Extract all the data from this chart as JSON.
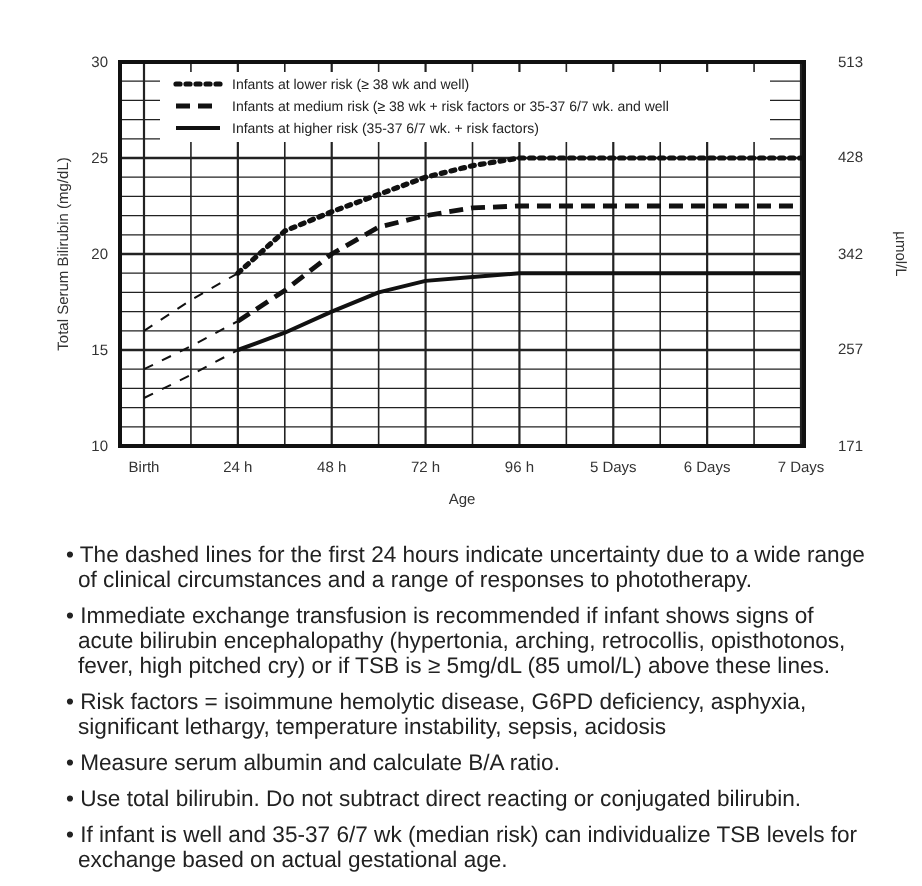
{
  "chart_data": {
    "type": "line",
    "xlabel": "Age",
    "ylabel": "Total Serum Bilirubin (mg/dL)",
    "y2label": "µmol/L",
    "categories": [
      "Birth",
      null,
      "24 h",
      null,
      "48 h",
      null,
      "72 h",
      null,
      "96 h",
      null,
      "5 Days",
      null,
      "6 Days",
      null,
      "7 Days"
    ],
    "ylim": [
      10,
      30
    ],
    "yticks": [
      10,
      {
        "value": 11,
        "label": null
      },
      {
        "value": 12,
        "label": null
      },
      {
        "value": 13,
        "label": null
      },
      {
        "value": 14,
        "label": null
      },
      15,
      {
        "value": 16,
        "label": null
      },
      {
        "value": 17,
        "label": null
      },
      {
        "value": 18,
        "label": null
      },
      {
        "value": 19,
        "label": null
      },
      20,
      {
        "value": 21,
        "label": null
      },
      {
        "value": 22,
        "label": null
      },
      {
        "value": 23,
        "label": null
      },
      {
        "value": 24,
        "label": null
      },
      25,
      {
        "value": 26,
        "label": null
      },
      {
        "value": 27,
        "label": null
      },
      {
        "value": 28,
        "label": null
      },
      {
        "value": 29,
        "label": null
      },
      30
    ],
    "y2lim": [
      171,
      513
    ],
    "y2ticks": [
      171,
      257,
      342,
      428,
      513
    ],
    "grid": true,
    "legend": "top left",
    "series": [
      {
        "name": "Infants at lower risk (≥ 38 wk and well)",
        "color": "#111111",
        "line_style": "dotted",
        "values": [
          null,
          null,
          19,
          21.2,
          22.2,
          23.1,
          24,
          24.6,
          25,
          25,
          25,
          25,
          25,
          25,
          25
        ]
      },
      {
        "name": "Infants at medium risk (≥ 38 wk + risk factors or 35-37 6/7 wk. and well",
        "color": "#111111",
        "line_style": "dashed",
        "values": [
          null,
          null,
          16.5,
          18.1,
          20,
          21.4,
          22,
          22.4,
          22.5,
          22.5,
          22.5,
          22.5,
          22.5,
          22.5,
          22.5
        ]
      },
      {
        "name": "Infants at higher risk (35-37 6/7 wk. + risk factors)",
        "color": "#111111",
        "line_style": "solid",
        "values": [
          null,
          null,
          15,
          15.9,
          17,
          18,
          18.6,
          18.8,
          19,
          19,
          19,
          19,
          19,
          19,
          19
        ]
      },
      {
        "color": "#111111",
        "line_style": "dashed",
        "values": [
          16,
          17.6,
          19,
          null,
          null,
          null,
          null,
          null,
          null,
          null,
          null,
          null,
          null,
          null,
          null
        ]
      },
      {
        "color": "#111111",
        "line_style": "dashed",
        "values": [
          14,
          15.2,
          16.5,
          null,
          null,
          null,
          null,
          null,
          null,
          null,
          null,
          null,
          null,
          null,
          null
        ]
      },
      {
        "color": "#111111",
        "line_style": "dashed",
        "values": [
          12.5,
          13.7,
          15,
          null,
          null,
          null,
          null,
          null,
          null,
          null,
          null,
          null,
          null,
          null,
          null
        ]
      }
    ],
    "annotations": [
      "• The dashed lines for the first 24 hours indicate uncertainty due to a wide range of clinical circumstances and a range of responses to phototherapy.",
      "• Immediate exchange transfusion is recommended if infant shows signs of acute bilirubin encephalopathy (hypertonia, arching, retrocollis, opisthotonos, fever, high pitched cry) or if TSB is ≥ 5mg/dL (85 umol/L) above these lines.",
      "• Risk factors = isoimmune hemolytic disease, G6PD deficiency, asphyxia, significant lethargy, temperature instability, sepsis, acidosis",
      "• Measure serum albumin and calculate B/A ratio.",
      "• Use total bilirubin. Do not subtract direct reacting or conjugated bilirubin.",
      "• If infant is well and 35-37 6/7 wk (median risk) can individualize TSB levels for exchange based on actual gestational age."
    ]
  }
}
